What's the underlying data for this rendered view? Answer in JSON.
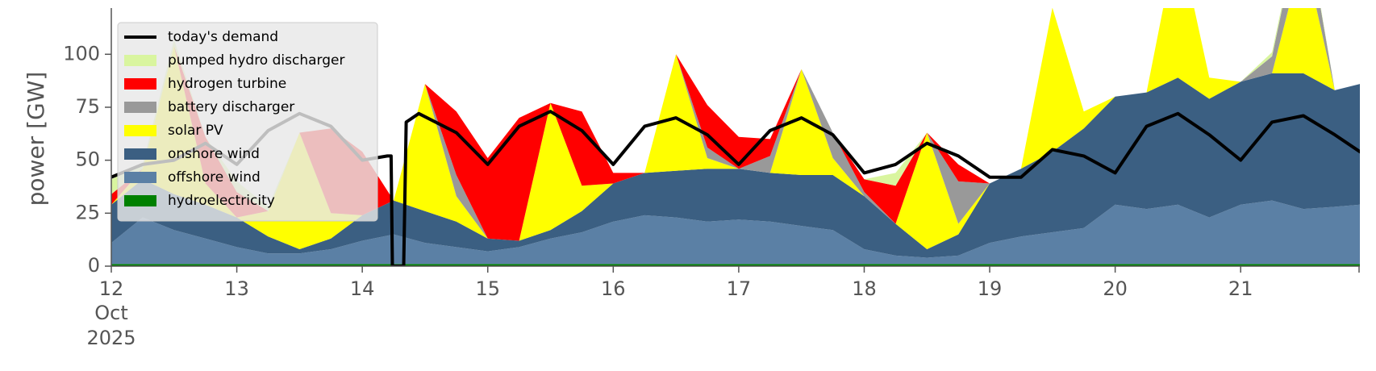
{
  "chart_data": {
    "type": "area",
    "ylabel": "power [GW]",
    "ylim": [
      0,
      118
    ],
    "xlim": [
      12,
      21.95
    ],
    "grid": false,
    "legend_position": "top-left",
    "x_ticks": [
      {
        "x": 12,
        "label": "12",
        "sub": [
          "Oct",
          "2025"
        ]
      },
      {
        "x": 13,
        "label": "13"
      },
      {
        "x": 14,
        "label": "14"
      },
      {
        "x": 15,
        "label": "15"
      },
      {
        "x": 16,
        "label": "16"
      },
      {
        "x": 17,
        "label": "17"
      },
      {
        "x": 18,
        "label": "18"
      },
      {
        "x": 19,
        "label": "19"
      },
      {
        "x": 20,
        "label": "20"
      },
      {
        "x": 21,
        "label": "21"
      }
    ],
    "y_ticks": [
      0,
      25,
      50,
      75,
      100
    ],
    "x": [
      12.0,
      12.25,
      12.5,
      12.75,
      13.0,
      13.25,
      13.5,
      13.75,
      14.0,
      14.25,
      14.5,
      14.75,
      15.0,
      15.25,
      15.5,
      15.75,
      16.0,
      16.25,
      16.5,
      16.75,
      17.0,
      17.25,
      17.5,
      17.75,
      18.0,
      18.25,
      18.5,
      18.75,
      19.0,
      19.25,
      19.5,
      19.75,
      20.0,
      20.25,
      20.5,
      20.75,
      21.0,
      21.25,
      21.5,
      21.75,
      21.95
    ],
    "stack_series": [
      {
        "name": "hydroelectricity",
        "color": "#008000",
        "values": [
          1,
          1,
          1,
          1,
          1,
          1,
          1,
          1,
          1,
          1,
          1,
          1,
          1,
          1,
          1,
          1,
          1,
          1,
          1,
          1,
          1,
          1,
          1,
          1,
          1,
          1,
          1,
          1,
          1,
          1,
          1,
          1,
          1,
          1,
          1,
          1,
          1,
          1,
          1,
          1,
          1
        ]
      },
      {
        "name": "offshore wind",
        "color": "#5b80a5",
        "values": [
          10,
          22,
          16,
          12,
          8,
          5,
          5,
          7,
          11,
          14,
          10,
          8,
          6,
          8,
          12,
          15,
          20,
          23,
          22,
          20,
          21,
          20,
          18,
          16,
          7,
          4,
          3,
          4,
          10,
          13,
          15,
          17,
          28,
          26,
          28,
          22,
          28,
          30,
          26,
          27,
          28
        ]
      },
      {
        "name": "onshore wind",
        "color": "#3b5f82",
        "values": [
          18,
          18,
          17,
          16,
          14,
          8,
          2,
          5,
          12,
          16,
          15,
          12,
          6,
          3,
          4,
          10,
          18,
          20,
          22,
          25,
          24,
          23,
          24,
          26,
          25,
          15,
          4,
          10,
          28,
          32,
          38,
          47,
          51,
          55,
          60,
          56,
          58,
          60,
          64,
          55,
          57
        ]
      },
      {
        "name": "solar PV",
        "color": "#ffff00",
        "values": [
          0,
          5,
          70,
          10,
          0,
          12,
          55,
          12,
          0,
          0,
          60,
          12,
          0,
          0,
          60,
          12,
          0,
          0,
          55,
          5,
          0,
          0,
          50,
          8,
          0,
          0,
          55,
          5,
          0,
          0,
          68,
          8,
          0,
          0,
          68,
          10,
          0,
          0,
          58,
          0,
          0
        ]
      },
      {
        "name": "battery discharger",
        "color": "#999999",
        "values": [
          0,
          0,
          0,
          0,
          0,
          0,
          0,
          0,
          0,
          0,
          0,
          10,
          0,
          0,
          0,
          0,
          0,
          0,
          0,
          5,
          0,
          8,
          0,
          12,
          2,
          0,
          0,
          20,
          0,
          0,
          0,
          0,
          0,
          0,
          0,
          0,
          0,
          8,
          20,
          0,
          0
        ]
      },
      {
        "name": "hydrogen turbine",
        "color": "#ff0000",
        "values": [
          5,
          0,
          0,
          22,
          12,
          0,
          0,
          40,
          30,
          0,
          0,
          30,
          38,
          58,
          0,
          35,
          5,
          0,
          0,
          20,
          15,
          8,
          0,
          0,
          6,
          18,
          0,
          8,
          0,
          0,
          0,
          0,
          0,
          0,
          0,
          0,
          0,
          0,
          0,
          0,
          0
        ]
      },
      {
        "name": "pumped hydro discharger",
        "color": "#d9f59f",
        "values": [
          7,
          2,
          3,
          0,
          5,
          2,
          0,
          0,
          0,
          0,
          0,
          0,
          0,
          0,
          0,
          0,
          0,
          0,
          0,
          0,
          0,
          0,
          0,
          0,
          0,
          6,
          0,
          0,
          0,
          0,
          0,
          0,
          0,
          0,
          0,
          0,
          0,
          2,
          2,
          0,
          0
        ]
      }
    ],
    "demand_series": {
      "name": "today's demand",
      "color": "#000000",
      "x": [
        12.0,
        12.25,
        12.5,
        12.75,
        13.0,
        13.25,
        13.5,
        13.75,
        14.0,
        14.2,
        14.23,
        14.24,
        14.33,
        14.35,
        14.45,
        14.75,
        15.0,
        15.25,
        15.5,
        15.75,
        16.0,
        16.25,
        16.5,
        16.75,
        17.0,
        17.25,
        17.5,
        17.75,
        18.0,
        18.25,
        18.5,
        18.75,
        19.0,
        19.25,
        19.5,
        19.75,
        20.0,
        20.25,
        20.5,
        20.75,
        21.0,
        21.25,
        21.5,
        21.75,
        21.95
      ],
      "values": [
        42,
        48,
        50,
        58,
        48,
        64,
        72,
        66,
        50,
        52,
        52,
        0,
        0,
        68,
        72,
        63,
        48,
        66,
        73,
        64,
        48,
        66,
        70,
        62,
        48,
        64,
        70,
        62,
        44,
        48,
        58,
        52,
        42,
        42,
        55,
        52,
        44,
        66,
        72,
        62,
        50,
        68,
        71,
        62,
        54
      ]
    }
  },
  "legend": {
    "items": [
      {
        "label": "today's demand",
        "kind": "line",
        "color": "#000000"
      },
      {
        "label": "pumped hydro discharger",
        "kind": "patch",
        "color": "#d9f59f"
      },
      {
        "label": "hydrogen turbine",
        "kind": "patch",
        "color": "#ff0000"
      },
      {
        "label": "battery discharger",
        "kind": "patch",
        "color": "#999999"
      },
      {
        "label": "solar PV",
        "kind": "patch",
        "color": "#ffff00"
      },
      {
        "label": "onshore wind",
        "kind": "patch",
        "color": "#3b5f82"
      },
      {
        "label": "offshore wind",
        "kind": "patch",
        "color": "#5b80a5"
      },
      {
        "label": "hydroelectricity",
        "kind": "patch",
        "color": "#008000"
      }
    ]
  }
}
